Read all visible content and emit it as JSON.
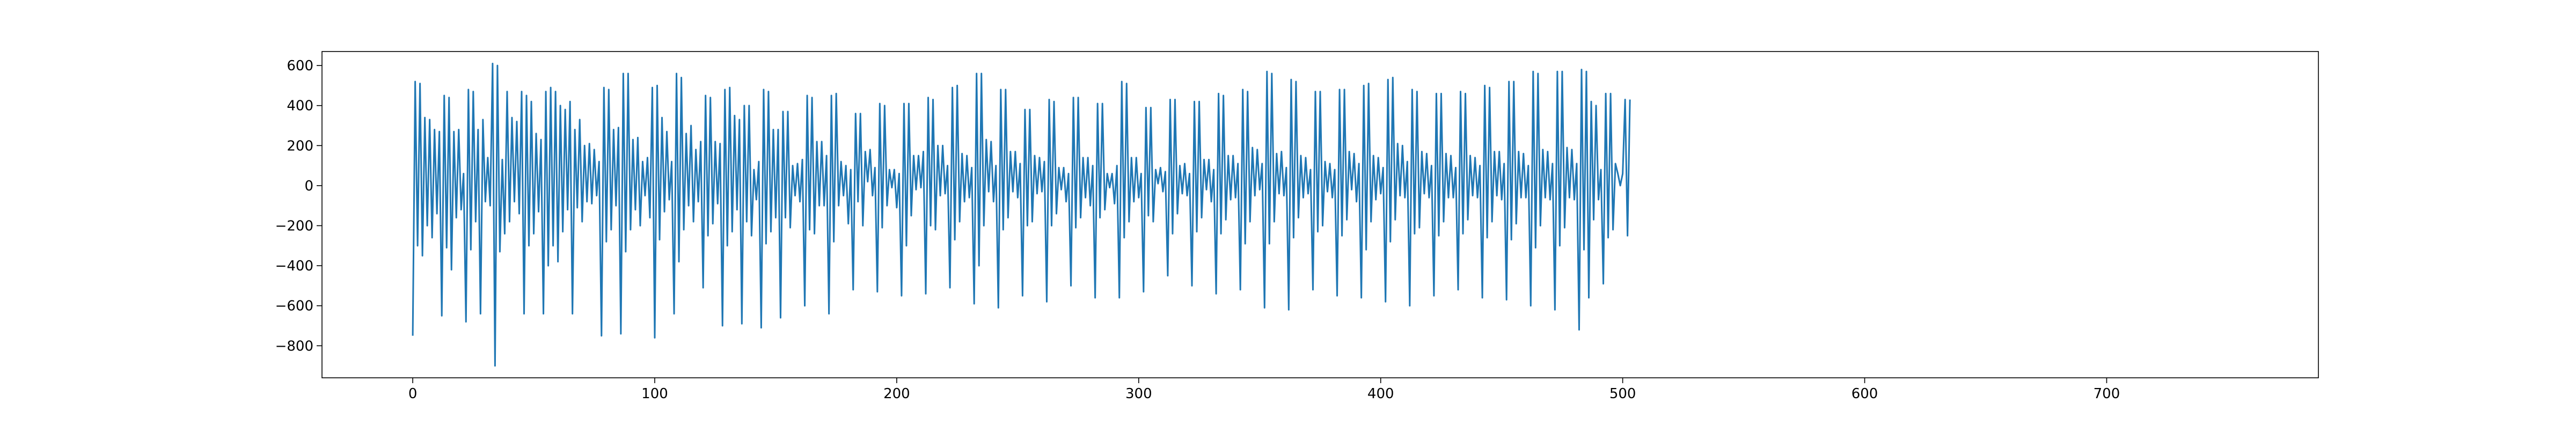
{
  "chart_data": {
    "type": "line",
    "title": "",
    "xlabel": "",
    "ylabel": "",
    "xlim": [
      -37.5,
      787.5
    ],
    "ylim": [
      -960,
      670
    ],
    "grid": false,
    "legend": "none",
    "x_ticks": [
      0,
      100,
      200,
      300,
      400,
      500,
      600,
      700
    ],
    "x_tick_labels": [
      "0",
      "100",
      "200",
      "300",
      "400",
      "500",
      "600",
      "700"
    ],
    "y_ticks": [
      -800,
      -600,
      -400,
      -200,
      0,
      200,
      400,
      600
    ],
    "y_tick_labels": [
      "−800",
      "−600",
      "−400",
      "−200",
      "0",
      "200",
      "400",
      "600"
    ],
    "series": [
      {
        "color": "#1f77b4",
        "x_start": 0,
        "x_step": 1,
        "values": [
          -750,
          520,
          -300,
          510,
          -350,
          340,
          -200,
          330,
          -260,
          280,
          -140,
          270,
          -650,
          450,
          -310,
          440,
          -420,
          270,
          -160,
          280,
          -120,
          60,
          -680,
          480,
          -320,
          470,
          -180,
          280,
          -640,
          330,
          -80,
          140,
          -100,
          610,
          -900,
          600,
          -330,
          130,
          -240,
          470,
          -180,
          340,
          -80,
          320,
          -140,
          470,
          -640,
          450,
          -300,
          420,
          -240,
          260,
          -130,
          230,
          -640,
          470,
          -400,
          490,
          -300,
          470,
          -380,
          400,
          -230,
          380,
          -120,
          420,
          -640,
          280,
          -110,
          330,
          -180,
          200,
          -80,
          210,
          -90,
          180,
          -50,
          120,
          -750,
          490,
          -280,
          480,
          -220,
          280,
          -100,
          290,
          -740,
          560,
          -330,
          560,
          -220,
          230,
          -120,
          240,
          -200,
          120,
          -50,
          140,
          -160,
          490,
          -760,
          500,
          -270,
          340,
          -130,
          270,
          -70,
          120,
          -640,
          560,
          -380,
          540,
          -220,
          260,
          -100,
          300,
          -180,
          180,
          -80,
          220,
          -510,
          450,
          -250,
          440,
          -190,
          220,
          -90,
          210,
          -700,
          480,
          -300,
          490,
          -230,
          350,
          -120,
          330,
          -690,
          400,
          -180,
          400,
          -250,
          80,
          -70,
          120,
          -710,
          480,
          -290,
          470,
          -230,
          280,
          -160,
          280,
          -660,
          370,
          -160,
          370,
          -210,
          100,
          -50,
          110,
          -80,
          130,
          -600,
          450,
          -220,
          440,
          -240,
          220,
          -100,
          220,
          -100,
          150,
          -640,
          450,
          -280,
          460,
          -100,
          120,
          -50,
          100,
          -190,
          80,
          -520,
          360,
          -80,
          360,
          -200,
          170,
          20,
          180,
          -50,
          90,
          -530,
          410,
          -210,
          400,
          -100,
          80,
          -10,
          80,
          -110,
          60,
          -550,
          410,
          -300,
          410,
          -150,
          150,
          -20,
          150,
          -10,
          170,
          -540,
          440,
          -200,
          430,
          -220,
          200,
          -50,
          200,
          -40,
          100,
          -510,
          490,
          -270,
          500,
          -180,
          160,
          -80,
          150,
          -60,
          90,
          -590,
          560,
          -400,
          560,
          -200,
          230,
          -30,
          220,
          -80,
          100,
          -610,
          480,
          -220,
          480,
          -160,
          170,
          -30,
          170,
          -60,
          110,
          -550,
          380,
          -200,
          380,
          -180,
          150,
          -40,
          140,
          -30,
          120,
          -580,
          430,
          -200,
          420,
          -140,
          90,
          -20,
          90,
          -80,
          60,
          -500,
          440,
          -210,
          440,
          -160,
          140,
          -60,
          140,
          -100,
          100,
          -560,
          410,
          -160,
          410,
          -120,
          60,
          -10,
          60,
          -90,
          100,
          -560,
          520,
          -260,
          510,
          -180,
          140,
          -80,
          140,
          -60,
          60,
          -530,
          390,
          -150,
          390,
          -180,
          80,
          10,
          90,
          -30,
          70,
          -450,
          430,
          -240,
          430,
          -140,
          100,
          -40,
          110,
          -50,
          60,
          -500,
          420,
          -230,
          420,
          -160,
          130,
          -20,
          130,
          -80,
          80,
          -540,
          460,
          -240,
          450,
          -170,
          150,
          -70,
          150,
          -60,
          110,
          -520,
          480,
          -290,
          470,
          -180,
          190,
          -50,
          180,
          -20,
          110,
          -610,
          570,
          -290,
          560,
          -180,
          160,
          -40,
          170,
          -50,
          90,
          -620,
          530,
          -260,
          520,
          -160,
          150,
          -60,
          140,
          -40,
          80,
          -520,
          470,
          -230,
          470,
          -200,
          120,
          -30,
          110,
          -60,
          80,
          -550,
          480,
          -250,
          480,
          -170,
          170,
          -20,
          160,
          -80,
          110,
          -560,
          500,
          -320,
          510,
          -180,
          150,
          -70,
          140,
          -40,
          90,
          -580,
          530,
          -280,
          540,
          -170,
          210,
          -50,
          200,
          -60,
          120,
          -600,
          480,
          -240,
          470,
          -210,
          170,
          -40,
          160,
          -60,
          100,
          -550,
          460,
          -250,
          460,
          -180,
          160,
          -60,
          150,
          -60,
          90,
          -520,
          470,
          -240,
          460,
          -170,
          150,
          -50,
          140,
          -60,
          100,
          -560,
          500,
          -260,
          490,
          -180,
          170,
          -50,
          170,
          -70,
          110,
          -570,
          520,
          -270,
          520,
          -190,
          170,
          -60,
          160,
          -60,
          100,
          -600,
          570,
          -310,
          560,
          -200,
          180,
          -60,
          170,
          -70,
          110,
          -620,
          570,
          -300,
          570,
          -210,
          190,
          -60,
          180,
          -70,
          110,
          -720,
          580,
          -320,
          570,
          -560,
          420,
          -170,
          400,
          -70,
          80,
          -490,
          460,
          -260,
          460,
          -220,
          110,
          60,
          0,
          60,
          430,
          -250,
          430
        ],
        "name": ""
      }
    ]
  }
}
